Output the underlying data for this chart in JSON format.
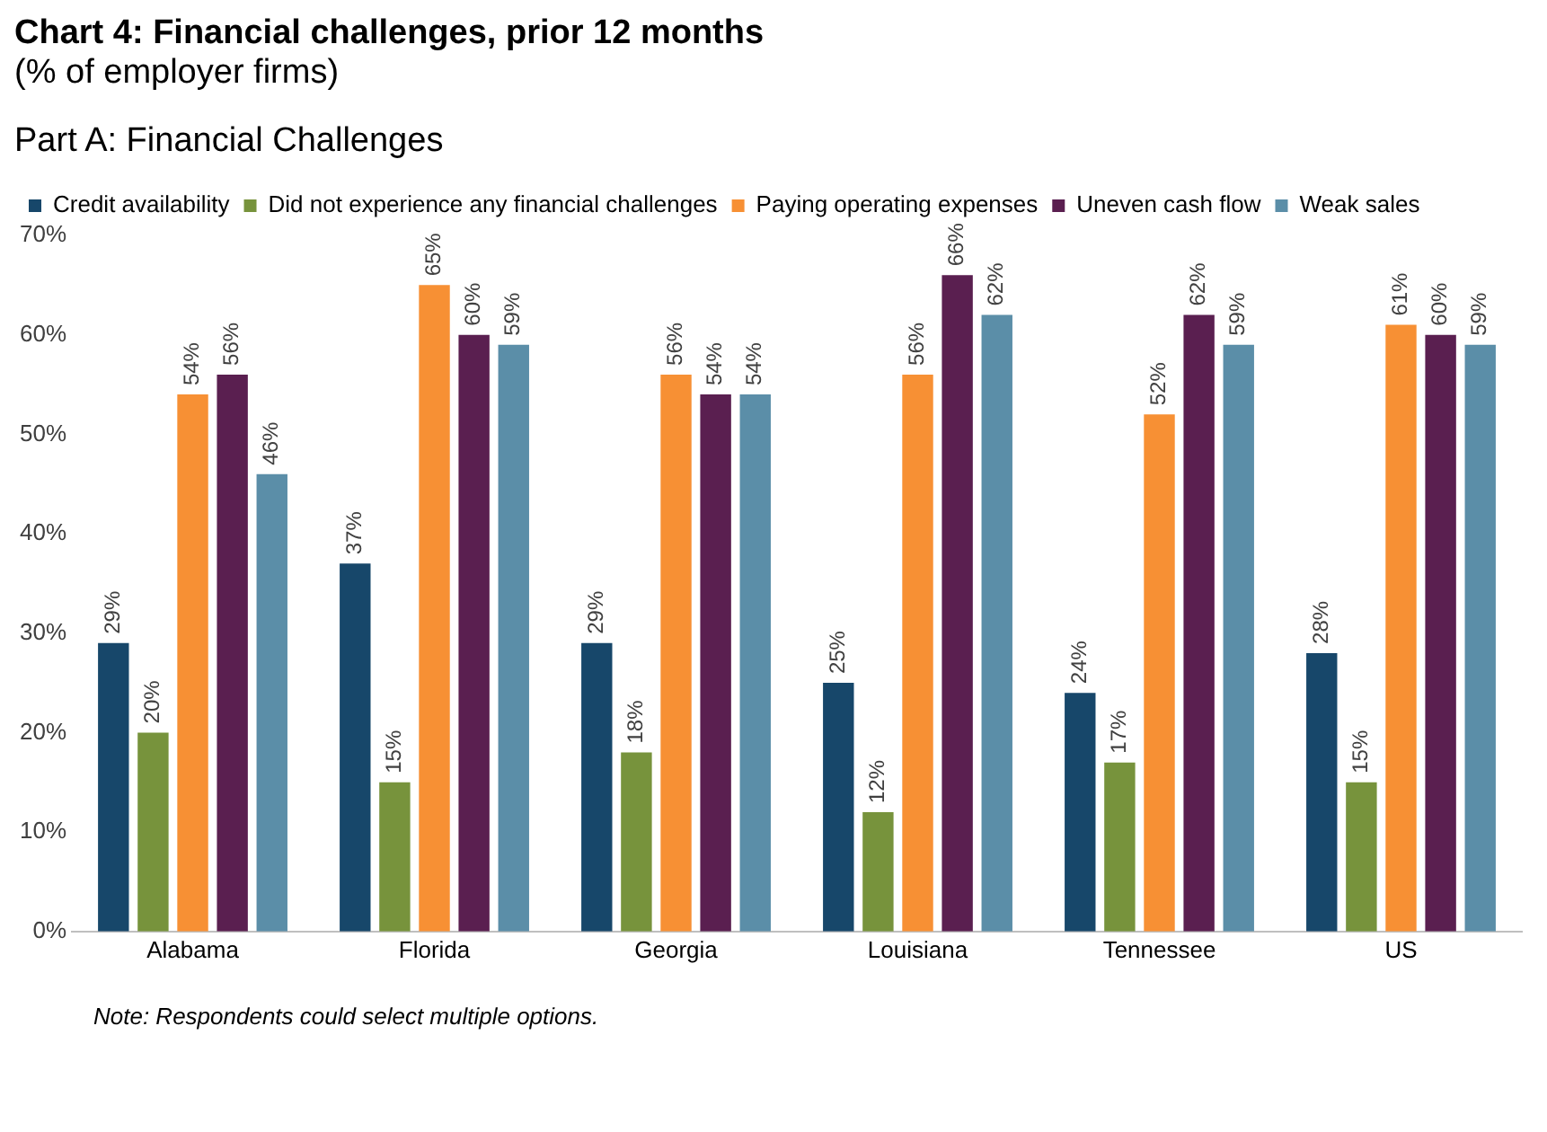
{
  "chart_data": {
    "type": "bar",
    "title": "Chart 4: Financial challenges, prior 12 months",
    "subtitle": "(% of employer firms)",
    "annotations": [
      "Part A: Financial Challenges",
      "Note: Respondents could select multiple options."
    ],
    "categories": [
      "Alabama",
      "Florida",
      "Georgia",
      "Louisiana",
      "Tennessee",
      "US"
    ],
    "series": [
      {
        "name": "Credit availability",
        "color": "#17476a",
        "values": [
          29,
          37,
          29,
          25,
          24,
          28
        ],
        "value_labels": [
          "29%",
          "37%",
          "29%",
          "25%",
          "24%",
          "28%"
        ]
      },
      {
        "name": "Did not experience any financial challenges",
        "color": "#77933c",
        "values": [
          20,
          15,
          18,
          12,
          17,
          15
        ],
        "value_labels": [
          "20%",
          "15%",
          "18%",
          "12%",
          "17%",
          "15%"
        ]
      },
      {
        "name": "Paying operating expenses",
        "color": "#f79034",
        "values": [
          54,
          65,
          56,
          56,
          52,
          61
        ],
        "value_labels": [
          "54%",
          "65%",
          "56%",
          "56%",
          "52%",
          "61%"
        ]
      },
      {
        "name": "Uneven cash flow",
        "color": "#5a1f50",
        "values": [
          56,
          60,
          54,
          66,
          62,
          60
        ],
        "value_labels": [
          "56%",
          "60%",
          "54%",
          "66%",
          "62%",
          "60%"
        ]
      },
      {
        "name": "Weak sales",
        "color": "#5b8ea8",
        "values": [
          46,
          59,
          54,
          62,
          59,
          59
        ],
        "value_labels": [
          "46%",
          "59%",
          "54%",
          "62%",
          "59%",
          "59%"
        ]
      }
    ],
    "ylim": [
      0,
      70
    ],
    "yticks": [
      {
        "value": 0,
        "label": "0%"
      },
      {
        "value": 10,
        "label": "10%"
      },
      {
        "value": 20,
        "label": "20%"
      },
      {
        "value": 30,
        "label": "30%"
      },
      {
        "value": 40,
        "label": "40%"
      },
      {
        "value": 50,
        "label": "50%"
      },
      {
        "value": 60,
        "label": "60%"
      },
      {
        "value": 70,
        "label": "70%"
      }
    ],
    "grid": false,
    "legend": "top"
  }
}
